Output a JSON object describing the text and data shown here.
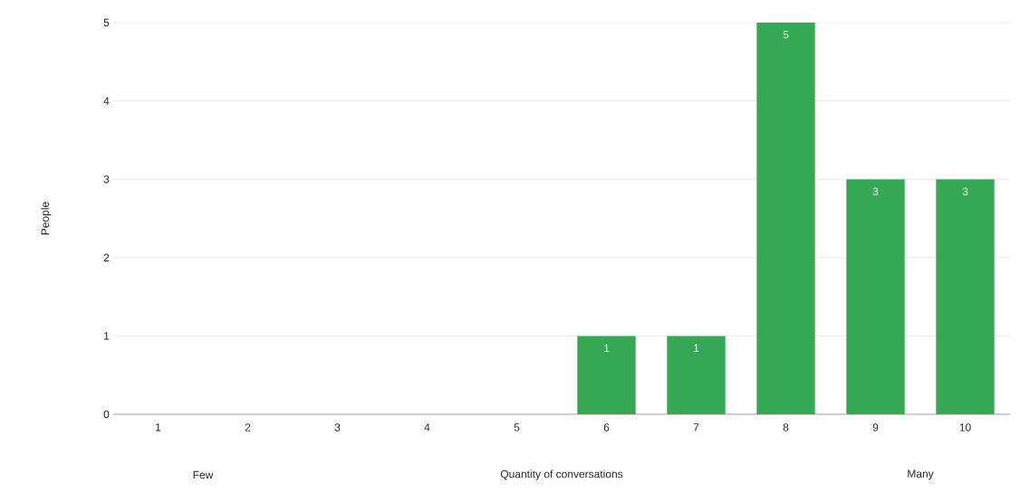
{
  "chart_data": {
    "type": "bar",
    "categories": [
      "1",
      "2",
      "3",
      "4",
      "5",
      "6",
      "7",
      "8",
      "9",
      "10"
    ],
    "values": [
      0,
      0,
      0,
      0,
      0,
      1,
      1,
      5,
      3,
      3
    ],
    "value_labels": [
      null,
      null,
      null,
      null,
      null,
      "1",
      "1",
      "5",
      "3",
      "3"
    ],
    "color": "#34a853",
    "xlabel": "Quantity of conversations",
    "ylabel": "People",
    "annotations": [
      "Few",
      "Many"
    ],
    "ylim": [
      0,
      5
    ],
    "yticks": [
      0,
      1,
      2,
      3,
      4,
      5
    ],
    "grid": "y"
  }
}
